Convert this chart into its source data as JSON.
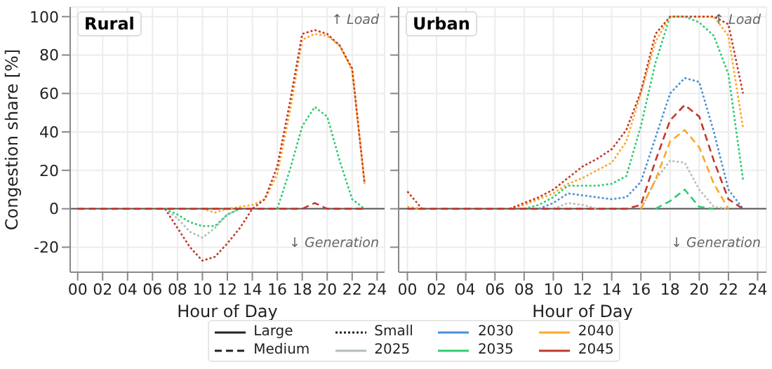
{
  "chart_data": [
    {
      "type": "line",
      "title": "Rural",
      "xlabel": "Hour of Day",
      "ylabel": "Congestion share [%]",
      "annotations": [
        "↑ Load",
        "↓ Generation"
      ],
      "x": [
        0,
        1,
        2,
        3,
        4,
        5,
        6,
        7,
        8,
        9,
        10,
        11,
        12,
        13,
        14,
        15,
        16,
        17,
        18,
        19,
        20,
        21,
        22,
        23
      ],
      "xlim": [
        -0.6,
        24.6
      ],
      "xticks": [
        {
          "value": 0,
          "label": "00"
        },
        {
          "value": 2,
          "label": "02"
        },
        {
          "value": 4,
          "label": "04"
        },
        {
          "value": 6,
          "label": "06"
        },
        {
          "value": 8,
          "label": "08"
        },
        10,
        12,
        14,
        16,
        18,
        20,
        22,
        24
      ],
      "ylim": [
        -33,
        105
      ],
      "yticks": [
        -20,
        0,
        20,
        40,
        60,
        80,
        100
      ],
      "grid": true,
      "legend": "bottom",
      "ref_lines": [
        {
          "axis": "y",
          "value": 0,
          "color": "#555555"
        }
      ],
      "series": [
        {
          "name": "Large",
          "color": "#222222",
          "line_style": "solid",
          "values": [
            null,
            null,
            null,
            null,
            null,
            null,
            null,
            null,
            null,
            null,
            null,
            null,
            null,
            null,
            null,
            null,
            null,
            null,
            null,
            null,
            null,
            null,
            null,
            null
          ]
        },
        {
          "name": "Medium",
          "color": "#222222",
          "line_style": "dashed",
          "values": [
            null,
            null,
            null,
            null,
            null,
            null,
            null,
            null,
            null,
            null,
            null,
            null,
            null,
            null,
            null,
            null,
            null,
            null,
            null,
            null,
            null,
            null,
            null,
            null
          ]
        },
        {
          "name": "Small",
          "color": "#222222",
          "line_style": "dotted",
          "values": [
            null,
            null,
            null,
            null,
            null,
            null,
            null,
            null,
            null,
            null,
            null,
            null,
            null,
            null,
            null,
            null,
            null,
            null,
            null,
            null,
            null,
            null,
            null,
            null
          ]
        },
        {
          "name": "2025",
          "color": "#b4bcbc",
          "line_style": "solid",
          "values": [
            null,
            null,
            null,
            null,
            null,
            null,
            null,
            null,
            null,
            null,
            null,
            null,
            null,
            null,
            null,
            null,
            null,
            null,
            null,
            null,
            null,
            null,
            null,
            null
          ]
        },
        {
          "name": "2030",
          "color": "#4a90d9",
          "line_style": "solid",
          "values": [
            null,
            null,
            null,
            null,
            null,
            null,
            null,
            null,
            null,
            null,
            null,
            null,
            null,
            null,
            null,
            null,
            null,
            null,
            null,
            null,
            null,
            null,
            null,
            null
          ]
        },
        {
          "name": "2035",
          "color": "#2ecc71",
          "line_style": "solid",
          "values": [
            null,
            null,
            null,
            null,
            null,
            null,
            null,
            null,
            null,
            null,
            null,
            null,
            null,
            null,
            null,
            null,
            null,
            null,
            null,
            null,
            null,
            null,
            null,
            null
          ]
        },
        {
          "name": "2040",
          "color": "#ffa726",
          "line_style": "solid",
          "values": [
            null,
            null,
            null,
            null,
            null,
            null,
            null,
            null,
            null,
            null,
            null,
            null,
            null,
            null,
            null,
            null,
            null,
            null,
            null,
            null,
            null,
            null,
            null,
            null
          ]
        },
        {
          "name": "2045",
          "color": "#c0392b",
          "line_style": "solid",
          "values": [
            null,
            null,
            null,
            null,
            null,
            null,
            null,
            null,
            null,
            null,
            null,
            null,
            null,
            null,
            null,
            null,
            null,
            null,
            null,
            null,
            null,
            null,
            null,
            null
          ]
        },
        {
          "color": "#b4bcbc",
          "line_style": "dotted",
          "values": [
            null,
            null,
            null,
            null,
            null,
            null,
            null,
            0,
            -5,
            -12,
            -15,
            -10,
            -3,
            0,
            null,
            null,
            null,
            null,
            null,
            null,
            null,
            null,
            null,
            null
          ]
        },
        {
          "color": "#2ecc71",
          "line_style": "dotted",
          "values": [
            null,
            null,
            null,
            null,
            null,
            null,
            null,
            0,
            -3,
            -7,
            -9,
            -9,
            -3,
            0,
            null,
            null,
            0,
            20,
            43,
            53,
            48,
            25,
            5,
            0
          ]
        },
        {
          "color": "#ffa726",
          "line_style": "dotted",
          "values": [
            null,
            null,
            null,
            null,
            null,
            null,
            null,
            null,
            null,
            null,
            0,
            -2,
            0,
            1,
            2,
            5,
            18,
            50,
            88,
            91,
            90,
            85,
            72,
            13
          ]
        },
        {
          "color": "#c0392b",
          "line_style": "dotted",
          "values": [
            null,
            null,
            null,
            null,
            null,
            null,
            null,
            0,
            -10,
            -20,
            -27,
            -25,
            -18,
            -10,
            0,
            5,
            22,
            55,
            91,
            93,
            91,
            85,
            73,
            13
          ]
        },
        {
          "color": "#c0392b",
          "line_style": "dashed",
          "values": [
            0,
            0,
            0,
            0,
            0,
            0,
            0,
            0,
            0,
            0,
            0,
            0,
            0,
            0,
            0,
            0,
            0,
            0,
            0,
            3,
            0,
            0,
            0,
            0
          ]
        }
      ]
    },
    {
      "type": "line",
      "title": "Urban",
      "xlabel": "Hour of Day",
      "annotations": [
        "↑ Load",
        "↓ Generation"
      ],
      "x": [
        0,
        1,
        2,
        3,
        4,
        5,
        6,
        7,
        8,
        9,
        10,
        11,
        12,
        13,
        14,
        15,
        16,
        17,
        18,
        19,
        20,
        21,
        22,
        23
      ],
      "xlim": [
        -0.6,
        24.6
      ],
      "xticks": [
        {
          "value": 0,
          "label": "00"
        },
        {
          "value": 2,
          "label": "02"
        },
        {
          "value": 4,
          "label": "04"
        },
        {
          "value": 6,
          "label": "06"
        },
        {
          "value": 8,
          "label": "08"
        },
        10,
        12,
        14,
        16,
        18,
        20,
        22,
        24
      ],
      "ylim": [
        -33,
        105
      ],
      "yticks": [
        {
          "value": -20,
          "label": null
        },
        {
          "value": 0,
          "label": null
        },
        {
          "value": 20,
          "label": null
        },
        {
          "value": 40,
          "label": null
        },
        {
          "value": 60,
          "label": null
        },
        {
          "value": 80,
          "label": null
        },
        {
          "value": 100,
          "label": null
        }
      ],
      "grid": true,
      "tick_labels": "x",
      "ref_lines": [
        {
          "axis": "y",
          "value": 0,
          "color": "#555555"
        }
      ],
      "series": [
        {
          "color": "#b4bcbc",
          "line_style": "dotted",
          "values": [
            null,
            null,
            null,
            null,
            null,
            null,
            null,
            null,
            null,
            null,
            0,
            3,
            2,
            0,
            null,
            null,
            0,
            15,
            25,
            24,
            10,
            1,
            0,
            null
          ]
        },
        {
          "color": "#4a90d9",
          "line_style": "dotted",
          "values": [
            null,
            null,
            null,
            null,
            null,
            null,
            null,
            null,
            null,
            0,
            3,
            8,
            7,
            6,
            5,
            6,
            14,
            37,
            60,
            68,
            66,
            40,
            10,
            0
          ]
        },
        {
          "color": "#2ecc71",
          "line_style": "dotted",
          "values": [
            null,
            null,
            null,
            null,
            null,
            null,
            null,
            null,
            0,
            2,
            6,
            12,
            12,
            12,
            13,
            17,
            43,
            76,
            100,
            100,
            97,
            90,
            70,
            15
          ]
        },
        {
          "color": "#ffa726",
          "line_style": "dotted",
          "values": [
            1,
            0,
            null,
            null,
            null,
            null,
            null,
            0,
            2,
            5,
            8,
            13,
            16,
            20,
            24,
            35,
            60,
            87,
            100,
            100,
            100,
            100,
            90,
            42
          ]
        },
        {
          "color": "#c0392b",
          "line_style": "dotted",
          "values": [
            9,
            0,
            null,
            null,
            null,
            null,
            null,
            0,
            3,
            6,
            10,
            16,
            22,
            26,
            31,
            41,
            61,
            91,
            100,
            100,
            100,
            100,
            96,
            60
          ]
        },
        {
          "color": "#2ecc71",
          "line_style": "dashed",
          "values": [
            null,
            null,
            null,
            null,
            null,
            null,
            null,
            null,
            null,
            null,
            null,
            null,
            null,
            null,
            null,
            null,
            null,
            0,
            4,
            10,
            1,
            0,
            null,
            null
          ]
        },
        {
          "color": "#ffa726",
          "line_style": "dashed",
          "values": [
            null,
            null,
            null,
            null,
            null,
            null,
            null,
            null,
            null,
            null,
            null,
            null,
            null,
            null,
            null,
            null,
            0,
            15,
            35,
            41,
            32,
            13,
            0,
            null
          ]
        },
        {
          "color": "#c0392b",
          "line_style": "dashed",
          "values": [
            0,
            0,
            0,
            0,
            0,
            0,
            0,
            0,
            0,
            0,
            0,
            0,
            0,
            0,
            0,
            0,
            2,
            25,
            46,
            54,
            48,
            25,
            5,
            0
          ]
        }
      ]
    }
  ]
}
